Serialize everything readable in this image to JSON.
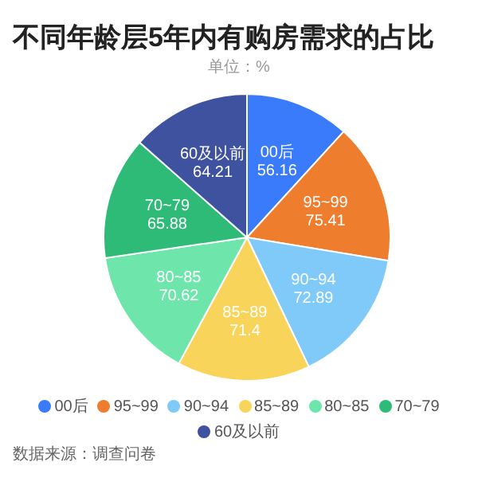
{
  "chart_data": {
    "type": "pie",
    "title": "不同年龄层5年内有购房需求的占比",
    "subtitle": "单位：%",
    "categories": [
      "00后",
      "95~99",
      "90~94",
      "85~89",
      "80~85",
      "70~79",
      "60及以前"
    ],
    "values": [
      56.16,
      75.41,
      72.89,
      71.4,
      70.62,
      65.88,
      64.21
    ],
    "colors": [
      "#3a7bfc",
      "#ef7d2e",
      "#7fcaf8",
      "#f9d45a",
      "#6ee6ab",
      "#2ebb78",
      "#3f52a0"
    ],
    "data_labels": true,
    "legend": "bottom",
    "annotations": [
      "数据来源：调查问卷"
    ]
  }
}
